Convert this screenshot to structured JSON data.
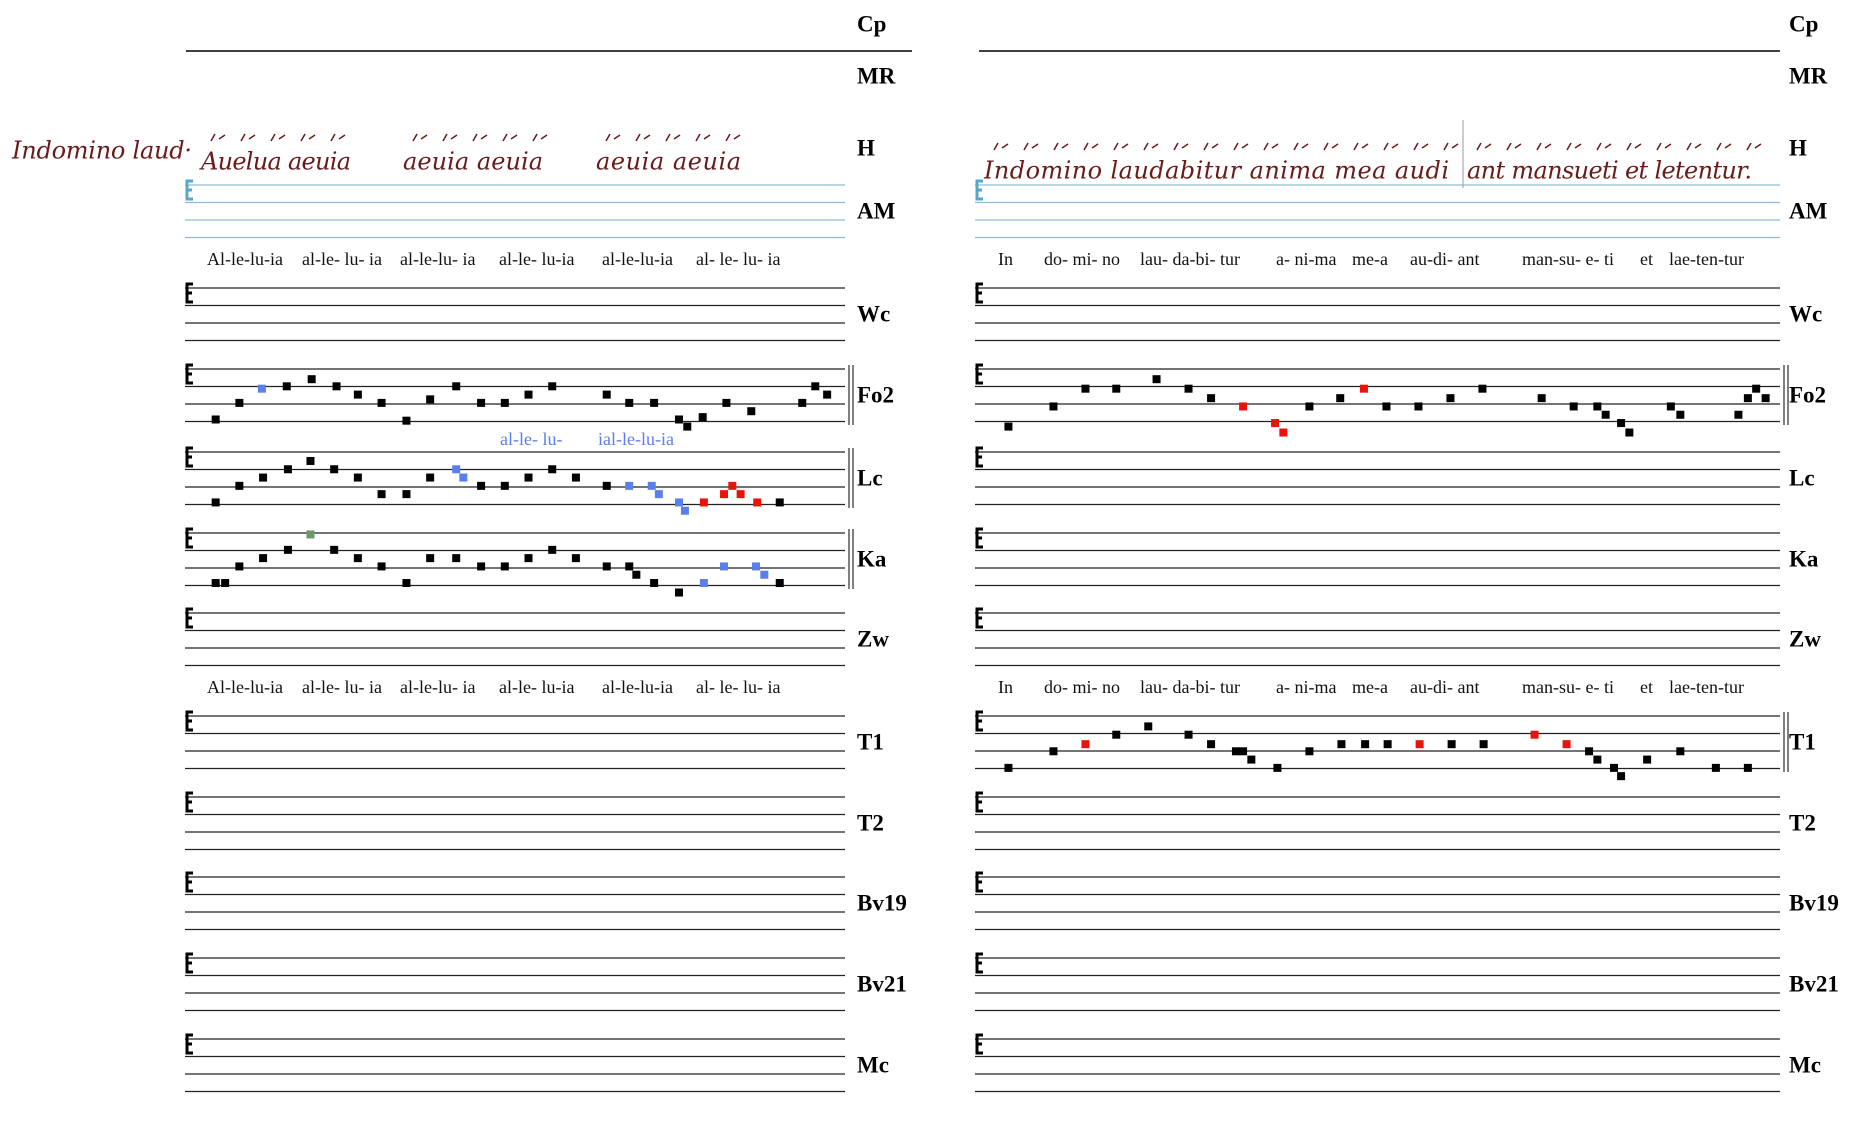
{
  "margin_label": "Indomino laud·",
  "panels": [
    {
      "sigla": [
        "Cp",
        "MR",
        "H",
        "AM",
        "Wc",
        "Fo2",
        "Lc",
        "Ka",
        "Zw",
        "T1",
        "T2",
        "Bv19",
        "Bv21",
        "Mc"
      ],
      "manuscript_text": [
        "Auelua aeuia",
        "aeuia aeuia",
        "aeuia aeuia"
      ],
      "lyrics_top": [
        "Al-le-lu-ia",
        "al-le- lu- ia",
        "al-le-lu- ia",
        "al-le- lu-ia",
        "al-le-lu-ia",
        "al- le- lu- ia"
      ],
      "variant_text": [
        "al-le- lu-",
        "ial-le-lu-ia"
      ],
      "lyrics_bottom": [
        "Al-le-lu-ia",
        "al-le- lu- ia",
        "al-le-lu- ia",
        "al-le- lu-ia",
        "al-le-lu-ia",
        "al- le- lu- ia"
      ]
    },
    {
      "sigla": [
        "Cp",
        "MR",
        "H",
        "AM",
        "Wc",
        "Fo2",
        "Lc",
        "Ka",
        "Zw",
        "T1",
        "T2",
        "Bv19",
        "Bv21",
        "Mc"
      ],
      "manuscript_text": [
        "Indomino laudabitur anima mea audi",
        "ant mansueti et letentur."
      ],
      "lyrics_top": [
        "In",
        "do- mi- no",
        "lau- da-bi- tur",
        "a- ni-ma",
        "me-a",
        "au-di- ant",
        "man-su- e- ti",
        "et",
        "lae-ten-tur"
      ],
      "lyrics_bottom": [
        "In",
        "do- mi- no",
        "lau- da-bi- tur",
        "a- ni-ma",
        "me-a",
        "au-di- ant",
        "man-su- e- ti",
        "et",
        "lae-ten-tur"
      ]
    }
  ]
}
